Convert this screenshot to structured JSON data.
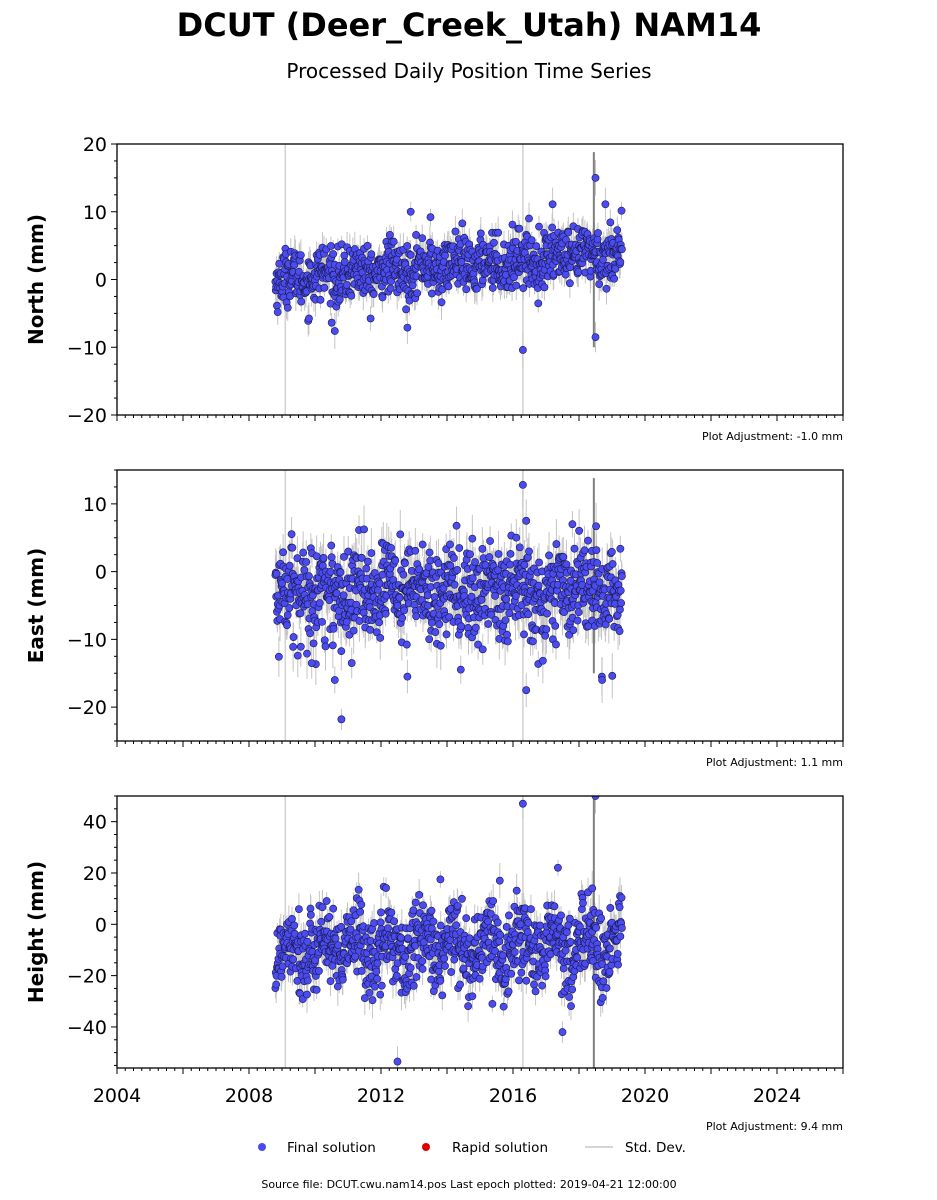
{
  "figure": {
    "title": "DCUT (Deer_Creek_Utah) NAM14",
    "subtitle": "Processed Daily Position Time Series",
    "source_note": "Source file: DCUT.cwu.nam14.pos  Last epoch plotted: 2019-04-21 12:00:00"
  },
  "legend": {
    "final_label": "Final solution",
    "rapid_label": "Rapid solution",
    "std_label": "Std. Dev.",
    "final_color": "#4a4af0",
    "rapid_color": "#e00000",
    "std_color": "#c8c8c8"
  },
  "colors": {
    "point_fill": "#4b4bf2",
    "point_edge": "#1a1a4a",
    "std_line": "#c4c4c4",
    "std_dark": "#555555",
    "vertical_marker": "#d2d2d2",
    "axis": "#000000"
  },
  "chart_data": [
    {
      "type": "scatter",
      "name": "north",
      "ylabel": "North (mm)",
      "ylim": [
        -20,
        20
      ],
      "xlim": [
        2004,
        2026
      ],
      "yticks": [
        -20,
        -10,
        0,
        10,
        20
      ],
      "ytick_labels": [
        "−20",
        "−10",
        "0",
        "10",
        "20"
      ],
      "xticks": [
        2004,
        2008,
        2012,
        2016,
        2020,
        2024
      ],
      "xtick_labels": [],
      "show_xtick_labels": false,
      "adjustment": "Plot Adjustment: -1.0 mm",
      "vlines": [
        2009.1,
        2016.3
      ],
      "data_span": [
        2008.8,
        2019.3
      ],
      "trend": [
        [
          2008.8,
          0.0
        ],
        [
          2019.3,
          4.0
        ]
      ],
      "scatter_sd": 2.0,
      "std_dev": 1.8,
      "n_points": 900,
      "outliers": [
        [
          2016.3,
          -10.4
        ],
        [
          2012.9,
          10.0
        ],
        [
          2013.5,
          9.2
        ],
        [
          2017.2,
          11.1
        ],
        [
          2018.8,
          11.1
        ],
        [
          2010.6,
          -7.6
        ],
        [
          2012.8,
          -7.1
        ],
        [
          2018.5,
          15.0
        ],
        [
          2018.5,
          -8.5
        ]
      ]
    },
    {
      "type": "scatter",
      "name": "east",
      "ylabel": "East (mm)",
      "ylim": [
        -25,
        15
      ],
      "xlim": [
        2004,
        2026
      ],
      "yticks": [
        -20,
        -10,
        0,
        10
      ],
      "ytick_labels": [
        "−20",
        "−10",
        "0",
        "10"
      ],
      "xticks": [
        2004,
        2008,
        2012,
        2016,
        2020,
        2024
      ],
      "xtick_labels": [],
      "show_xtick_labels": false,
      "adjustment": "Plot Adjustment: 1.1 mm",
      "vlines": [
        2009.1,
        2016.3
      ],
      "data_span": [
        2008.8,
        2019.3
      ],
      "trend": [
        [
          2008.8,
          -2.5
        ],
        [
          2019.3,
          -2.5
        ]
      ],
      "scatter_sd": 3.2,
      "std_dev": 2.5,
      "n_points": 900,
      "outliers": [
        [
          2016.3,
          12.8
        ],
        [
          2016.4,
          7.5
        ],
        [
          2017.8,
          7.0
        ],
        [
          2010.8,
          -21.8
        ],
        [
          2010.6,
          -16.0
        ],
        [
          2016.4,
          -17.5
        ],
        [
          2009.9,
          -13.5
        ],
        [
          2012.8,
          -15.5
        ],
        [
          2018.7,
          -16.0
        ]
      ]
    },
    {
      "type": "scatter",
      "name": "height",
      "ylabel": "Height (mm)",
      "ylim": [
        -56,
        50
      ],
      "xlim": [
        2004,
        2026
      ],
      "yticks": [
        -40,
        -20,
        0,
        20,
        40
      ],
      "ytick_labels": [
        "−40",
        "−20",
        "0",
        "20",
        "40"
      ],
      "xticks": [
        2004,
        2008,
        2012,
        2016,
        2020,
        2024
      ],
      "xtick_labels": [
        "2004",
        "2008",
        "2012",
        "2016",
        "2020",
        "2024"
      ],
      "show_xtick_labels": true,
      "adjustment": "Plot Adjustment: 9.4 mm",
      "vlines": [
        2009.1,
        2016.3
      ],
      "data_span": [
        2008.8,
        2019.3
      ],
      "trend": [
        [
          2008.8,
          -10.0
        ],
        [
          2019.3,
          -8.0
        ]
      ],
      "scatter_sd": 8.0,
      "std_dev": 5.0,
      "n_points": 900,
      "outliers": [
        [
          2016.3,
          47.0
        ],
        [
          2012.5,
          -53.5
        ],
        [
          2017.5,
          -42.0
        ],
        [
          2018.4,
          14.0
        ],
        [
          2013.8,
          17.5
        ],
        [
          2015.6,
          17.0
        ],
        [
          2018.5,
          50.0
        ]
      ]
    }
  ]
}
